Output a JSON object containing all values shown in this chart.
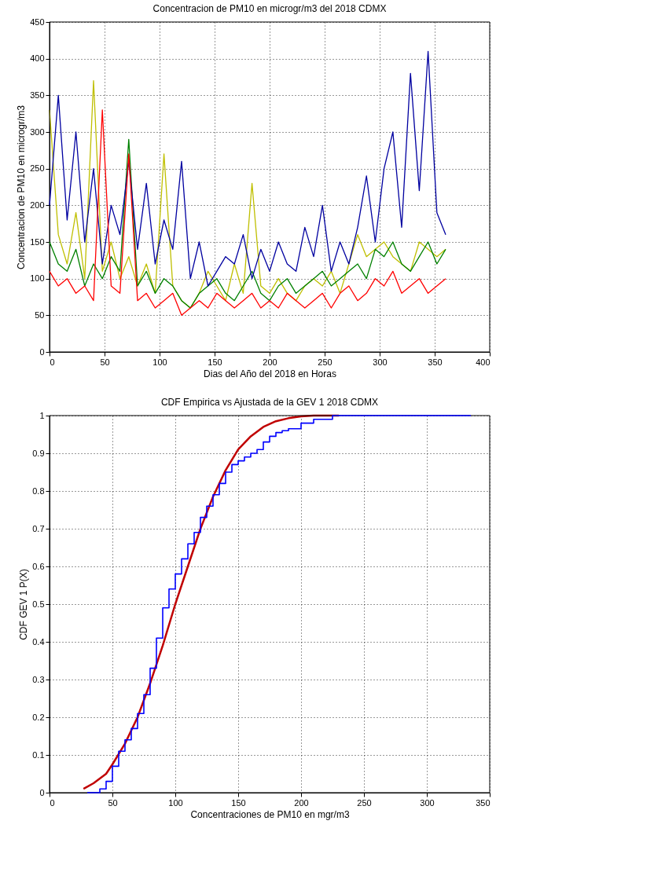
{
  "chart_data": [
    {
      "type": "line",
      "title": "Concentracion de PM10 en microgr/m3 del 2018 CDMX",
      "xlabel": "Dias del Año del 2018 en Horas",
      "ylabel": "Concentracion de PM10 en microgr/m3",
      "xlim": [
        0,
        400
      ],
      "ylim": [
        0,
        450
      ],
      "xticks": [
        0,
        50,
        100,
        150,
        200,
        250,
        300,
        350,
        400
      ],
      "yticks": [
        0,
        50,
        100,
        150,
        200,
        250,
        300,
        350,
        400,
        450
      ],
      "grid": true,
      "legend": false,
      "x": [
        0,
        8,
        16,
        24,
        32,
        40,
        48,
        56,
        64,
        72,
        80,
        88,
        96,
        104,
        112,
        120,
        128,
        136,
        144,
        152,
        160,
        168,
        176,
        184,
        192,
        200,
        208,
        216,
        224,
        232,
        240,
        248,
        256,
        264,
        272,
        280,
        288,
        296,
        304,
        312,
        320,
        328,
        336,
        344,
        352,
        360
      ],
      "series": [
        {
          "color": "#bfbf00",
          "values": [
            330,
            160,
            120,
            190,
            100,
            370,
            110,
            150,
            100,
            130,
            90,
            120,
            80,
            270,
            90,
            70,
            60,
            80,
            110,
            90,
            70,
            120,
            80,
            230,
            90,
            80,
            100,
            80,
            70,
            90,
            100,
            90,
            110,
            80,
            120,
            160,
            130,
            140,
            150,
            130,
            120,
            110,
            150,
            140,
            130,
            140
          ]
        },
        {
          "color": "#008000",
          "values": [
            150,
            120,
            110,
            140,
            90,
            120,
            100,
            130,
            110,
            290,
            90,
            110,
            80,
            100,
            90,
            70,
            60,
            80,
            90,
            100,
            80,
            70,
            90,
            110,
            80,
            70,
            90,
            100,
            80,
            90,
            100,
            110,
            90,
            100,
            110,
            120,
            100,
            140,
            130,
            150,
            120,
            110,
            130,
            150,
            120,
            140
          ]
        },
        {
          "color": "#0000a0",
          "values": [
            200,
            350,
            180,
            300,
            150,
            250,
            120,
            200,
            160,
            260,
            140,
            230,
            120,
            180,
            140,
            260,
            100,
            150,
            90,
            110,
            130,
            120,
            160,
            100,
            140,
            110,
            150,
            120,
            110,
            170,
            130,
            200,
            110,
            150,
            120,
            170,
            240,
            150,
            250,
            300,
            170,
            380,
            220,
            410,
            190,
            160
          ]
        },
        {
          "color": "#ff0000",
          "values": [
            110,
            90,
            100,
            80,
            90,
            70,
            330,
            90,
            80,
            270,
            70,
            80,
            60,
            70,
            80,
            50,
            60,
            70,
            60,
            80,
            70,
            60,
            70,
            80,
            60,
            70,
            60,
            80,
            70,
            60,
            70,
            80,
            60,
            80,
            90,
            70,
            80,
            100,
            90,
            110,
            80,
            90,
            100,
            80,
            90,
            100
          ]
        }
      ]
    },
    {
      "type": "line",
      "title": "CDF Empirica vs Ajustada de la GEV 1 2018 CDMX",
      "xlabel": "Concentraciones de PM10 en mgr/m3",
      "ylabel": "CDF GEV 1 P(X)",
      "xlim": [
        0,
        350
      ],
      "ylim": [
        0,
        1
      ],
      "xticks": [
        0,
        50,
        100,
        150,
        200,
        250,
        300,
        350
      ],
      "yticks": [
        0,
        0.1,
        0.2,
        0.3,
        0.4,
        0.5,
        0.6,
        0.7,
        0.8,
        0.9,
        1
      ],
      "grid": true,
      "legend": false,
      "series": [
        {
          "type": "line",
          "color": "#c00000",
          "x": [
            27,
            35,
            45,
            50,
            60,
            70,
            80,
            90,
            100,
            110,
            120,
            130,
            140,
            150,
            160,
            170,
            180,
            190,
            200,
            210,
            230
          ],
          "values": [
            0.01,
            0.025,
            0.05,
            0.075,
            0.13,
            0.2,
            0.29,
            0.39,
            0.5,
            0.6,
            0.7,
            0.785,
            0.855,
            0.91,
            0.945,
            0.97,
            0.985,
            0.993,
            0.998,
            1,
            1
          ]
        },
        {
          "type": "step",
          "color": "#0000ff",
          "x": [
            30,
            40,
            45,
            50,
            55,
            60,
            65,
            70,
            75,
            80,
            85,
            90,
            95,
            100,
            105,
            110,
            115,
            120,
            125,
            130,
            135,
            140,
            145,
            150,
            155,
            160,
            165,
            170,
            175,
            180,
            185,
            190,
            200,
            210,
            225,
            335
          ],
          "values": [
            0,
            0.01,
            0.03,
            0.07,
            0.11,
            0.14,
            0.17,
            0.21,
            0.26,
            0.33,
            0.41,
            0.49,
            0.54,
            0.58,
            0.62,
            0.66,
            0.69,
            0.73,
            0.76,
            0.79,
            0.82,
            0.85,
            0.87,
            0.88,
            0.89,
            0.9,
            0.91,
            0.93,
            0.945,
            0.955,
            0.96,
            0.965,
            0.98,
            0.99,
            1,
            1
          ]
        }
      ]
    }
  ]
}
